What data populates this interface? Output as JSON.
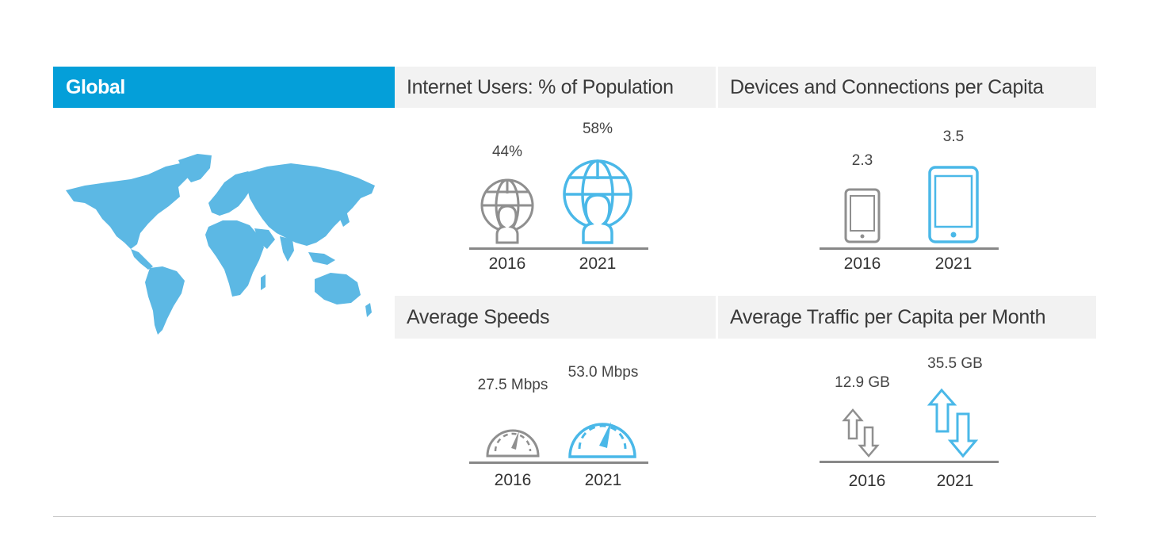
{
  "region": {
    "title": "Global"
  },
  "colors": {
    "accent": "#049fd9",
    "highlight": "#4ab8e8",
    "muted": "#8f8f8f",
    "header_bg": "#f2f2f2"
  },
  "panels": {
    "internet_users": {
      "title": "Internet Users: % of Population",
      "icon": "globe-user-icon",
      "year_2016": "2016",
      "year_2021": "2021",
      "value_2016": "44%",
      "value_2021": "58%"
    },
    "devices": {
      "title": "Devices and Connections per Capita",
      "icon": "tablet-icon",
      "year_2016": "2016",
      "year_2021": "2021",
      "value_2016": "2.3",
      "value_2021": "3.5"
    },
    "speeds": {
      "title": "Average Speeds",
      "icon": "speedometer-icon",
      "year_2016": "2016",
      "year_2021": "2021",
      "value_2016": "27.5 Mbps",
      "value_2021": "53.0 Mbps"
    },
    "traffic": {
      "title": "Average Traffic per Capita per Month",
      "icon": "up-down-arrows-icon",
      "year_2016": "2016",
      "year_2021": "2021",
      "value_2016": "12.9 GB",
      "value_2021": "35.5 GB"
    }
  }
}
